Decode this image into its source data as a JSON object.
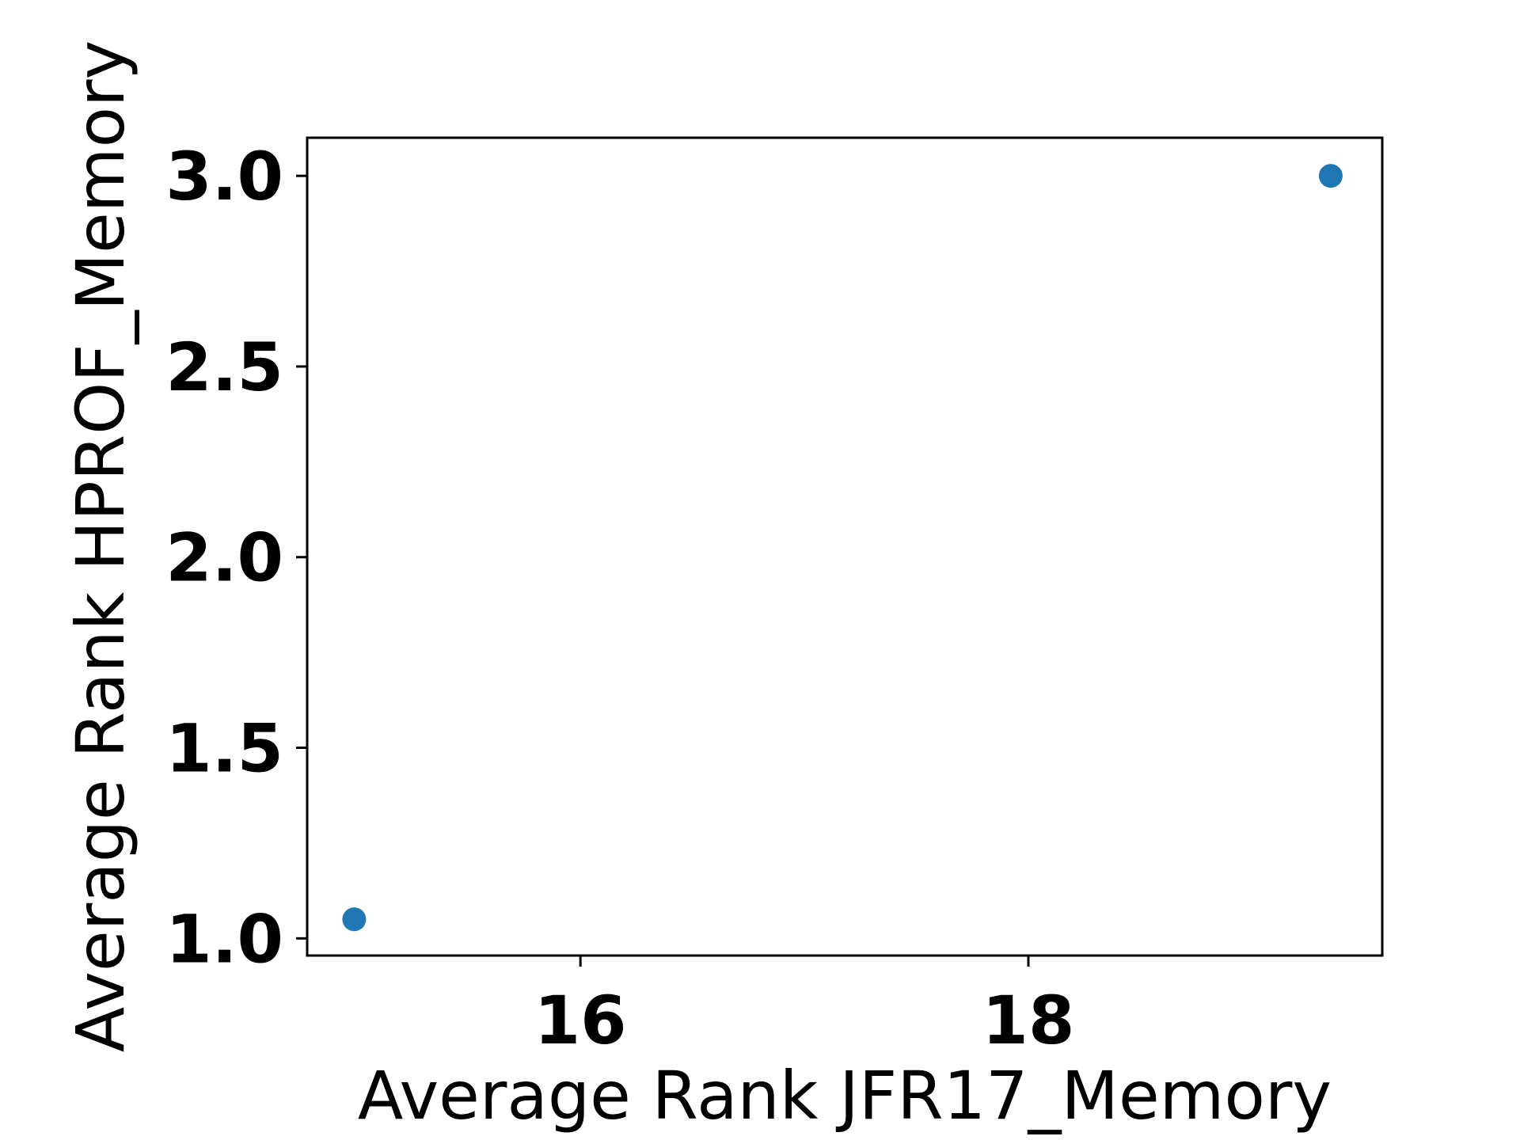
{
  "chart_data": {
    "type": "scatter",
    "title": "",
    "xlabel": "Average Rank JFR17_Memory",
    "ylabel": "Average Rank HPROF_Memory",
    "xlim": [
      14.78,
      19.58
    ],
    "ylim": [
      0.955,
      3.1
    ],
    "xticks": [
      16,
      18
    ],
    "xtick_labels": [
      "16",
      "18"
    ],
    "yticks": [
      1.0,
      1.5,
      2.0,
      2.5,
      3.0
    ],
    "ytick_labels": [
      "1.0",
      "1.5",
      "2.0",
      "2.5",
      "3.0"
    ],
    "grid": false,
    "series": [
      {
        "color": "#1f77b4",
        "points": [
          {
            "x": 14.99,
            "y": 1.05
          },
          {
            "x": 19.35,
            "y": 3.0
          }
        ]
      }
    ]
  }
}
